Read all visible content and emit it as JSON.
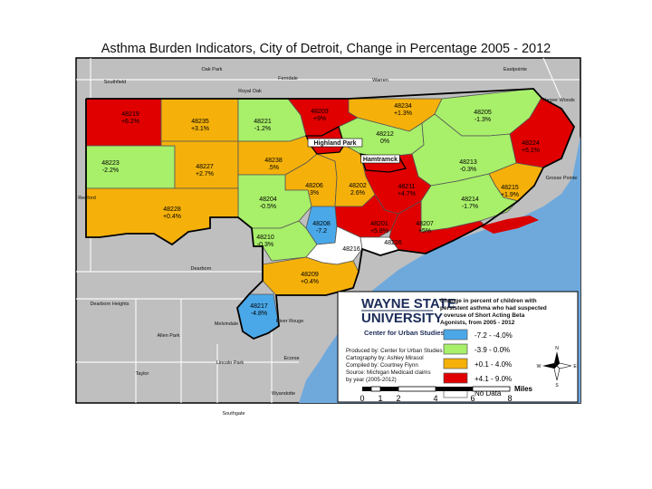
{
  "title": "Asthma Burden Indicators, City of Detroit, Change in Percentage 2005 - 2012",
  "colors": {
    "blue": "#4aa8e8",
    "green": "#a8ef6a",
    "orange": "#f5b10a",
    "red": "#e00000",
    "nodata": "#ffffff",
    "land": "#bfbfbf",
    "water": "#6fa9dc"
  },
  "zipcodes": [
    {
      "zip": "48219",
      "value": "+6.2%"
    },
    {
      "zip": "48235",
      "value": "+3.1%"
    },
    {
      "zip": "48221",
      "value": "-1.2%"
    },
    {
      "zip": "48203",
      "value": "+9%"
    },
    {
      "zip": "48234",
      "value": "+1.3%"
    },
    {
      "zip": "48205",
      "value": "-1.3%"
    },
    {
      "zip": "48212",
      "value": "0%"
    },
    {
      "zip": "48224",
      "value": "+5.1%"
    },
    {
      "zip": "48223",
      "value": "-2.2%"
    },
    {
      "zip": "48227",
      "value": "+2.7%"
    },
    {
      "zip": "48238",
      "value": ".5%"
    },
    {
      "zip": "48213",
      "value": "-0.3%"
    },
    {
      "zip": "48211",
      "value": "+4.7%"
    },
    {
      "zip": "48215",
      "value": "+1.9%"
    },
    {
      "zip": "48206",
      "value": "3%"
    },
    {
      "zip": "48202",
      "value": "2.6%"
    },
    {
      "zip": "48204",
      "value": "-0.5%"
    },
    {
      "zip": "48214",
      "value": "-1.7%"
    },
    {
      "zip": "48228",
      "value": "+0.4%"
    },
    {
      "zip": "48208",
      "value": "-7.2"
    },
    {
      "zip": "48201",
      "value": "+5.8%"
    },
    {
      "zip": "48207",
      "value": "+5%"
    },
    {
      "zip": "48210",
      "value": "-0.3%"
    },
    {
      "zip": "48216",
      "value": ""
    },
    {
      "zip": "48226",
      "value": ""
    },
    {
      "zip": "48209",
      "value": "+0.4%"
    },
    {
      "zip": "48217",
      "value": "-4.8%"
    }
  ],
  "places": [
    "Southfield",
    "Oak Park",
    "Ferndale",
    "Warren",
    "Eastpointe",
    "Royal Oak",
    "Harper Woods",
    "Highland Park",
    "Hamtramck",
    "Grosse Pointe",
    "Redford",
    "Dearborn",
    "Dearborn Heights",
    "Melvindale",
    "River Rouge",
    "Allen Park",
    "Ecorse",
    "Lincoln Park",
    "Taylor",
    "Wyandotte",
    "Southgate"
  ],
  "legend": {
    "logo_line1": "WAYNE STATE",
    "logo_line2": "UNIVERSITY",
    "center": "Center for Urban Studies",
    "title_lines": [
      "Change in percent of children with",
      "persistent asthma who had suspected",
      "overuse of Short Acting Beta",
      "Agonists, from 2005 - 2012"
    ],
    "classes": [
      {
        "label": "-7.2 - -4.0%",
        "color": "#4aa8e8"
      },
      {
        "label": "-3.9 - 0.0%",
        "color": "#a8ef6a"
      },
      {
        "label": "+0.1 - 4.0%",
        "color": "#f5b10a"
      },
      {
        "label": "+4.1 - 9.0%",
        "color": "#e00000"
      },
      {
        "label": "No Data",
        "color": "#ffffff"
      }
    ],
    "credits": [
      "Produced by: Center for Urban Studies",
      "Cartography by: Ashley Mirasol",
      "Compiled by: Courtney Flynn",
      "Source: Michigan Medicaid claims",
      "by year (2005-2012)"
    ],
    "scale_ticks": [
      "0",
      "1",
      "2",
      "4",
      "6",
      "8"
    ],
    "scale_unit": "Miles",
    "compass": [
      "N",
      "S",
      "E",
      "W"
    ]
  }
}
